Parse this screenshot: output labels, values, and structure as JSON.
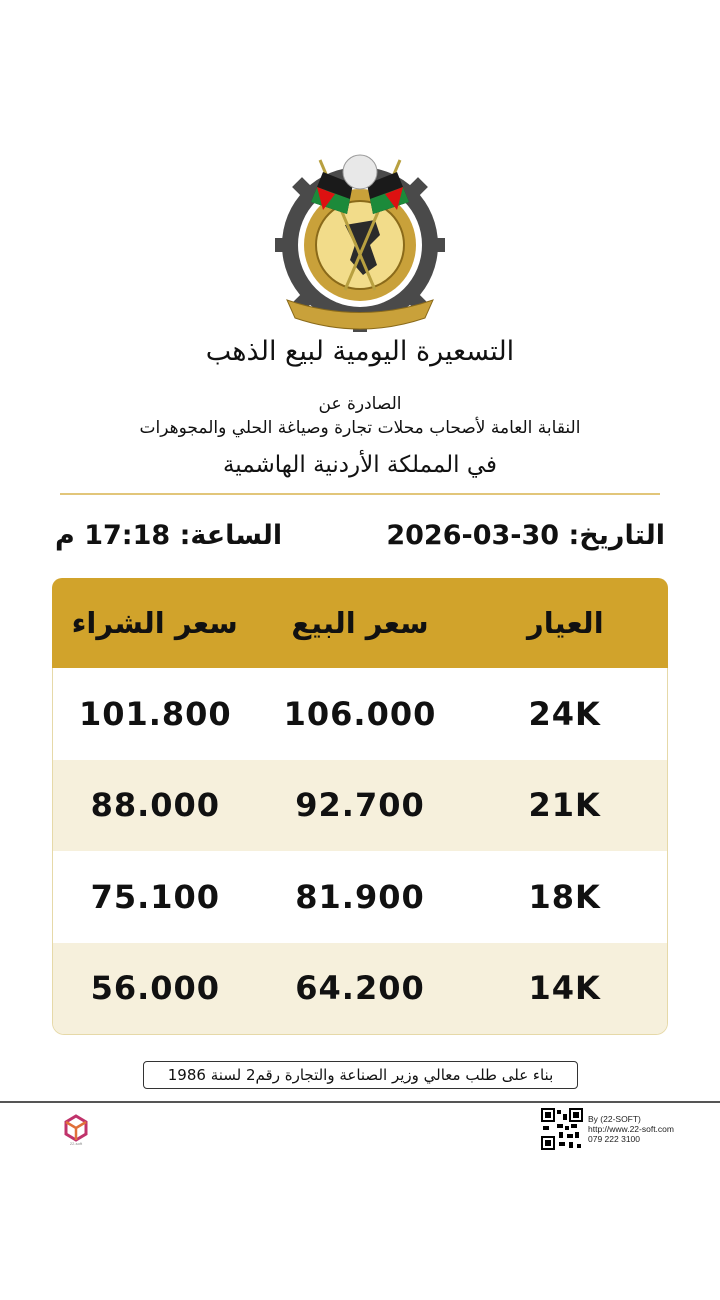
{
  "header": {
    "title": "التسعيرة اليومية لبيع الذهب",
    "issued_by": "الصادرة عن",
    "organization": "النقابة العامة لأصحاب محلات تجارة وصياغة الحلي والمجوهرات",
    "kingdom": "في المملكة الأردنية الهاشمية"
  },
  "datetime": {
    "date_label": "التاريخ:",
    "date_value": "30-03-2026",
    "time_label": "الساعة:",
    "time_value": "17:18 م"
  },
  "table": {
    "columns": [
      "العيار",
      "سعر البيع",
      "سعر الشراء"
    ],
    "rows": [
      {
        "karat": "24K",
        "sell": "106.000",
        "buy": "101.800"
      },
      {
        "karat": "21K",
        "sell": "92.700",
        "buy": "88.000"
      },
      {
        "karat": "18K",
        "sell": "81.900",
        "buy": "75.100"
      },
      {
        "karat": "14K",
        "sell": "64.200",
        "buy": "56.000"
      }
    ]
  },
  "note": "بناء على طلب معالي وزير الصناعة والتجارة رقم2 لسنة 1986",
  "footer": {
    "brand_logo_text": "22-soft",
    "by": "By (22-SOFT)",
    "website": "http://www.22-soft.com",
    "phone": "079 222 3100"
  },
  "colors": {
    "gold_header": "#d1a32b",
    "cream_row": "#f6f0dc",
    "divider": "#e2c67a"
  }
}
